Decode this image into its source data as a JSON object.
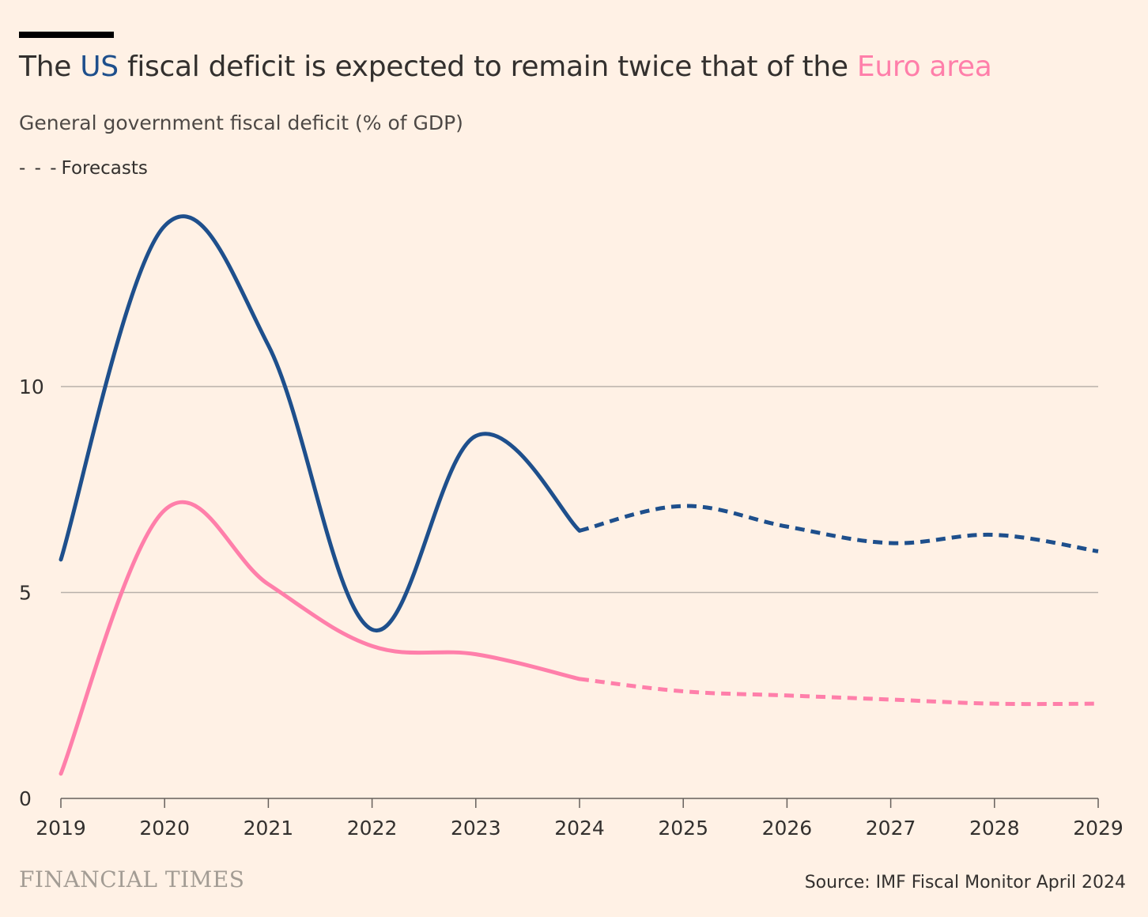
{
  "header": {
    "title_prefix": "The ",
    "title_us": "US",
    "title_middle": " fiscal deficit is expected to remain twice that of the ",
    "title_euro": "Euro area",
    "subtitle": "General government fiscal deficit (% of GDP)",
    "legend_dash": "- - -",
    "legend_label": "Forecasts"
  },
  "footer": {
    "brand": "FINANCIAL TIMES",
    "source": "Source: IMF Fiscal Monitor April 2024"
  },
  "colors": {
    "background": "#fff1e5",
    "us": "#1e4f8c",
    "euro": "#ff7faa",
    "grid": "#b8b1aa",
    "text": "#33302e"
  },
  "chart_data": {
    "type": "line",
    "title": "The US fiscal deficit is expected to remain twice that of the Euro area",
    "subtitle": "General government fiscal deficit (% of GDP)",
    "xlabel": "",
    "ylabel": "",
    "x": [
      2019,
      2020,
      2021,
      2022,
      2023,
      2024,
      2025,
      2026,
      2027,
      2028,
      2029
    ],
    "ylim": [
      0,
      14
    ],
    "yticks": [
      0,
      5,
      10
    ],
    "forecast_from": 2024,
    "series": [
      {
        "name": "US",
        "color": "#1e4f8c",
        "values": [
          5.8,
          13.9,
          11.0,
          4.1,
          8.8,
          6.5,
          7.1,
          6.6,
          6.2,
          6.4,
          6.0
        ]
      },
      {
        "name": "Euro area",
        "color": "#ff7faa",
        "values": [
          0.6,
          7.0,
          5.2,
          3.7,
          3.5,
          2.9,
          2.6,
          2.5,
          2.4,
          2.3,
          2.3
        ]
      }
    ]
  }
}
